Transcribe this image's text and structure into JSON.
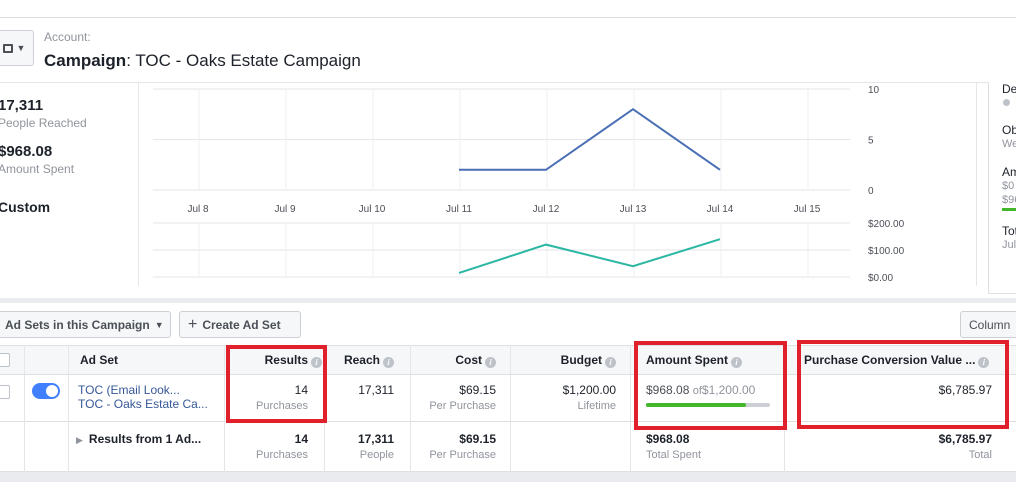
{
  "header": {
    "account_label": "Account:",
    "campaign_prefix": "Campaign",
    "campaign_name": "TOC - Oaks Estate Campaign"
  },
  "stats": {
    "reach_value": "17,311",
    "reach_label": "People Reached",
    "spent_value": "$968.08",
    "spent_label": "Amount Spent",
    "custom_label": "Custom"
  },
  "chart_data": [
    {
      "type": "line",
      "x": [
        "Jul 8",
        "Jul 9",
        "Jul 10",
        "Jul 11",
        "Jul 12",
        "Jul 13",
        "Jul 14",
        "Jul 15"
      ],
      "y_ticks": [
        "10",
        "5",
        "0"
      ],
      "ylim": [
        0,
        10
      ],
      "series": [
        {
          "values": [
            null,
            null,
            null,
            2,
            2,
            8,
            2,
            null
          ],
          "color": "#4a6fb5"
        }
      ]
    },
    {
      "type": "line",
      "x": [
        "Jul 8",
        "Jul 9",
        "Jul 10",
        "Jul 11",
        "Jul 12",
        "Jul 13",
        "Jul 14",
        "Jul 15"
      ],
      "y_ticks": [
        "$200.00",
        "$100.00",
        "$0.00"
      ],
      "ylim": [
        0,
        200
      ],
      "series": [
        {
          "values": [
            null,
            null,
            null,
            15,
            120,
            40,
            140,
            null
          ],
          "color": "#2bb7a3"
        }
      ]
    }
  ],
  "right_panel": {
    "t1": "De",
    "t2": "Ob",
    "s2": "We",
    "t3": "Am",
    "s3a": "$0",
    "s3b": "$96",
    "t4": "Tot",
    "s4": "Jul"
  },
  "toolbar": {
    "adsets_label": "Ad Sets in this Campaign",
    "create_label": "Create Ad Set",
    "columns_label": "Column"
  },
  "table": {
    "headers": {
      "adset": "Ad Set",
      "results": "Results",
      "reach": "Reach",
      "cost": "Cost",
      "budget": "Budget",
      "amount_spent": "Amount Spent",
      "purchase_value": "Purchase Conversion Value ..."
    },
    "row": {
      "name_line1": "TOC (Email Look...",
      "name_line2": "TOC - Oaks Estate Ca...",
      "results": "14",
      "results_sub": "Purchases",
      "reach": "17,311",
      "cost": "$69.15",
      "cost_sub": "Per Purchase",
      "budget": "$1,200.00",
      "budget_sub": "Lifetime",
      "spent": "$968.08",
      "spent_of": "of",
      "spent_budget": "$1,200.00",
      "spent_fraction": 0.807,
      "purchase_value": "$6,785.97"
    },
    "total": {
      "label": "Results from 1 Ad...",
      "results": "14",
      "results_sub": "Purchases",
      "reach": "17,311",
      "reach_sub": "People",
      "cost": "$69.15",
      "cost_sub": "Per Purchase",
      "spent": "$968.08",
      "spent_sub": "Total Spent",
      "purchase_value": "$6,785.97",
      "purchase_sub": "Total"
    }
  },
  "colors": {
    "highlight": "#e0202a",
    "line1": "#4a6fb5",
    "line2": "#2bb7a3"
  }
}
